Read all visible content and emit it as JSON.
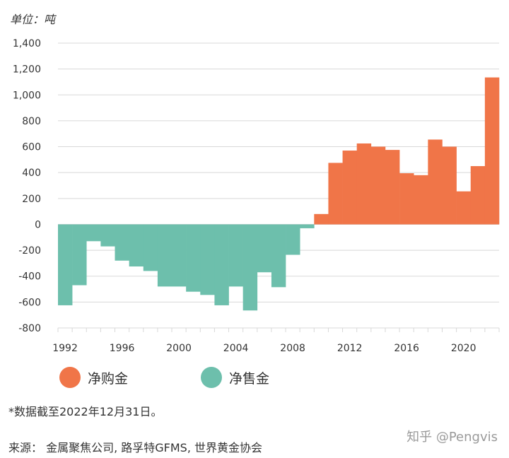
{
  "unit_label": "单位：吨",
  "colors": {
    "buy": "#f07548",
    "sell": "#6dbfac",
    "grid": "#d8d8d8",
    "text": "#333333"
  },
  "chart_data": {
    "type": "bar",
    "years": [
      1992,
      1993,
      1994,
      1995,
      1996,
      1997,
      1998,
      1999,
      2000,
      2001,
      2002,
      2003,
      2004,
      2005,
      2006,
      2007,
      2008,
      2009,
      2010,
      2011,
      2012,
      2013,
      2014,
      2015,
      2016,
      2017,
      2018,
      2019,
      2020,
      2021,
      2022
    ],
    "values": [
      -625,
      -470,
      -130,
      -170,
      -280,
      -325,
      -360,
      -480,
      -480,
      -520,
      -545,
      -625,
      -480,
      -665,
      -370,
      -485,
      -235,
      -30,
      80,
      475,
      570,
      625,
      600,
      575,
      395,
      380,
      655,
      600,
      255,
      450,
      1135
    ],
    "x_tick_labels": [
      "1992",
      "1996",
      "2000",
      "2004",
      "2008",
      "2012",
      "2016",
      "2020"
    ],
    "y_tick_labels": [
      "1,400",
      "1,200",
      "1,000",
      "800",
      "600",
      "400",
      "200",
      "0",
      "-200",
      "-400",
      "-600",
      "-800"
    ],
    "ylim": [
      -800,
      1400
    ],
    "legend": [
      {
        "label": "净购金",
        "color": "#f07548"
      },
      {
        "label": "净售金",
        "color": "#6dbfac"
      }
    ]
  },
  "footnote": "*数据截至2022年12月31日。",
  "source": "来源： 金属聚焦公司, 路孚特GFMS, 世界黄金协会",
  "watermark": "知乎 @Pengvis"
}
